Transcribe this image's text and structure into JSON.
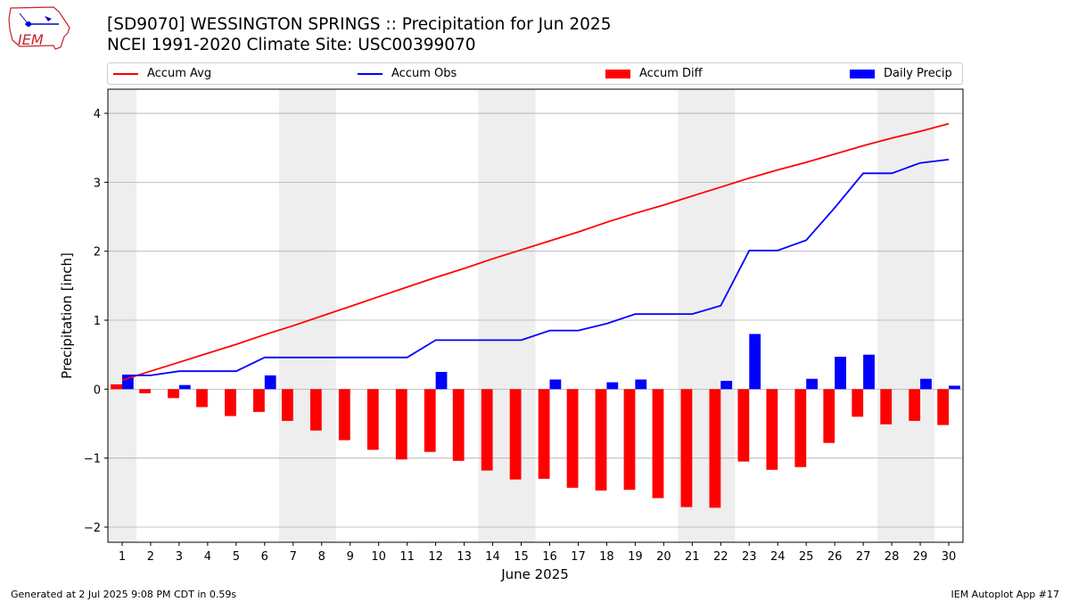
{
  "header": {
    "logo_text": "IEM",
    "title_line1": "[SD9070] WESSINGTON SPRINGS :: Precipitation for Jun 2025",
    "title_line2": "NCEI 1991-2020 Climate Site: USC00399070"
  },
  "footer": {
    "generated": "Generated at 2 Jul 2025 9:08 PM CDT in 0.59s",
    "app": "IEM Autoplot App #17"
  },
  "colors": {
    "accum_avg": "#ff0000",
    "accum_obs": "#0000ff",
    "accum_diff": "#ff0000",
    "daily_precip": "#0000ff",
    "weekend_shade": "#eeeeee",
    "grid": "#b0b0b0"
  },
  "chart_data": {
    "type": "bar",
    "xlabel": "June 2025",
    "ylabel": "Precipitation [inch]",
    "ylim": [
      -2.22,
      4.35
    ],
    "xlim": [
      0.5,
      30.5
    ],
    "yticks": [
      -2,
      -1,
      0,
      1,
      2,
      3,
      4
    ],
    "ytick_labels": [
      "−2",
      "−1",
      "0",
      "1",
      "2",
      "3",
      "4"
    ],
    "grid": "horizontal",
    "legend_position": "top",
    "days": [
      1,
      2,
      3,
      4,
      5,
      6,
      7,
      8,
      9,
      10,
      11,
      12,
      13,
      14,
      15,
      16,
      17,
      18,
      19,
      20,
      21,
      22,
      23,
      24,
      25,
      26,
      27,
      28,
      29,
      30
    ],
    "weekend_shading": [
      [
        0.5,
        1.5
      ],
      [
        6.5,
        8.5
      ],
      [
        13.5,
        15.5
      ],
      [
        20.5,
        22.5
      ],
      [
        27.5,
        29.5
      ]
    ],
    "series": [
      {
        "name": "Accum Avg",
        "kind": "line",
        "values": [
          0.13,
          0.26,
          0.39,
          0.52,
          0.65,
          0.79,
          0.92,
          1.06,
          1.2,
          1.34,
          1.48,
          1.62,
          1.75,
          1.89,
          2.02,
          2.15,
          2.28,
          2.42,
          2.55,
          2.67,
          2.8,
          2.93,
          3.06,
          3.18,
          3.29,
          3.41,
          3.53,
          3.64,
          3.74,
          3.85
        ]
      },
      {
        "name": "Accum Obs",
        "kind": "line",
        "values": [
          0.2,
          0.2,
          0.26,
          0.26,
          0.26,
          0.46,
          0.46,
          0.46,
          0.46,
          0.46,
          0.46,
          0.71,
          0.71,
          0.71,
          0.71,
          0.85,
          0.85,
          0.95,
          1.09,
          1.09,
          1.09,
          1.21,
          2.01,
          2.01,
          2.16,
          2.63,
          3.13,
          3.13,
          3.28,
          3.33
        ]
      },
      {
        "name": "Accum Diff",
        "kind": "bar",
        "values": [
          0.07,
          -0.06,
          -0.13,
          -0.26,
          -0.39,
          -0.33,
          -0.46,
          -0.6,
          -0.74,
          -0.88,
          -1.02,
          -0.91,
          -1.04,
          -1.18,
          -1.31,
          -1.3,
          -1.43,
          -1.47,
          -1.46,
          -1.58,
          -1.71,
          -1.72,
          -1.05,
          -1.17,
          -1.13,
          -0.78,
          -0.4,
          -0.51,
          -0.46,
          -0.52
        ]
      },
      {
        "name": "Daily Precip",
        "kind": "bar",
        "values": [
          0.2,
          0.0,
          0.06,
          0.0,
          0.0,
          0.2,
          0.0,
          0.0,
          0.0,
          0.0,
          0.0,
          0.25,
          0.0,
          0.0,
          0.0,
          0.14,
          0.0,
          0.1,
          0.14,
          0.0,
          0.0,
          0.12,
          0.8,
          0.0,
          0.15,
          0.47,
          0.5,
          0.0,
          0.15,
          0.05
        ]
      }
    ]
  }
}
